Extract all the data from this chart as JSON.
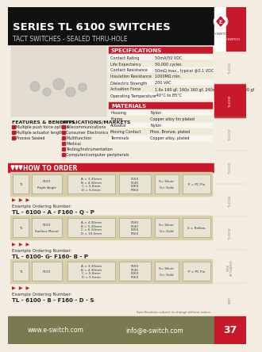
{
  "title": "SERIES TL 6100 SWITCHES",
  "subtitle": "TACT SWITCHES - SEALED THRU-HOLE",
  "bg_color": "#f2ede0",
  "header_bg": "#111111",
  "red_color": "#c8192a",
  "tan_color": "#d8cfa8",
  "olive_footer": "#7a7a50",
  "logo_bg": "#c8192a",
  "specs_title": "SPECIFICATIONS",
  "specs": [
    [
      "Contact Rating",
      "50mA/50 VDC"
    ],
    [
      "Life Expectancy",
      "50,000 cycles"
    ],
    [
      "Contact Resistance",
      "50mΩ max., typical @0.1 VDC"
    ],
    [
      "Insulation Resistance",
      "1000MΩ min."
    ],
    [
      "Dielectric Strength",
      "200 VAC"
    ],
    [
      "Actuation Force",
      "1.6x 160 gf, 160x 160 gf, 240x 160 gf, 160x 100 gf"
    ],
    [
      "Operating Temperature",
      "-40°C to 85°C"
    ]
  ],
  "materials_title": "MATERIALS",
  "materials": [
    [
      "Housing",
      "Nylon"
    ],
    [
      "Frame",
      "Copper alloy tin plated"
    ],
    [
      "Actuator",
      "Nylon"
    ],
    [
      "Moving Contact",
      "Phos. Bronze, plated"
    ],
    [
      "Terminals",
      "Copper alloy, plated"
    ]
  ],
  "features_title": "FEATURES & BENEFITS",
  "features": [
    "Multiple push force options",
    "Multiple actuator lengths",
    "Process Sealed"
  ],
  "apps_title": "APPLICATIONS/MARKETS",
  "apps": [
    "Telecommunications",
    "Consumer Electronics",
    "Multifunction",
    "Medical",
    "Testing/Instrumentation",
    "Computer/computer peripherals"
  ],
  "hto_title": "HOW TO ORDER",
  "row1_boxes": [
    [
      "TL",
      ""
    ],
    [
      "F100",
      "Right Angle"
    ],
    [
      "A = 3.35mm",
      "B = 4.30mm",
      "C = 5.0mm",
      "D = 5.5mm"
    ],
    [
      "F160",
      "F140",
      "F260",
      "F560"
    ],
    [
      "S= Silver",
      "G= Gold"
    ],
    [
      "P = PC Pin"
    ]
  ],
  "row2_boxes": [
    [
      "TL",
      ""
    ],
    [
      "F100",
      "Surface Mount"
    ],
    [
      "A = 4.30mm",
      "B = 5.20mm",
      "C = 6.10mm",
      "D = 10.0mm"
    ],
    [
      "F160",
      "F140",
      "F260",
      "F560"
    ],
    [
      "S= Silver",
      "G= Gold"
    ],
    [
      "S = Reflow"
    ]
  ],
  "ordering1_label": "Example Ordering Number:",
  "ordering1_text": "TL - 6100 - A - F160 - Q - P",
  "ordering2_label": "Example Ordering Number:",
  "ordering2_text": "TL - 6100- G- F160- B - P",
  "ordering3_label": "Example Ordering Number:",
  "ordering3_text": "TL - 6100 - B - F160 - D - S",
  "spec_note": "Specifications subject to change without notice.",
  "footer_web": "www.e-switch.com",
  "footer_email": "info@e-switch.com",
  "footer_page": "37",
  "sidebar_labels": [
    "TL6105",
    "TL6100",
    "TL61GP",
    "TL6130",
    "TL6150",
    "TL6200",
    "SIDE\nPUSH",
    "SMD"
  ]
}
